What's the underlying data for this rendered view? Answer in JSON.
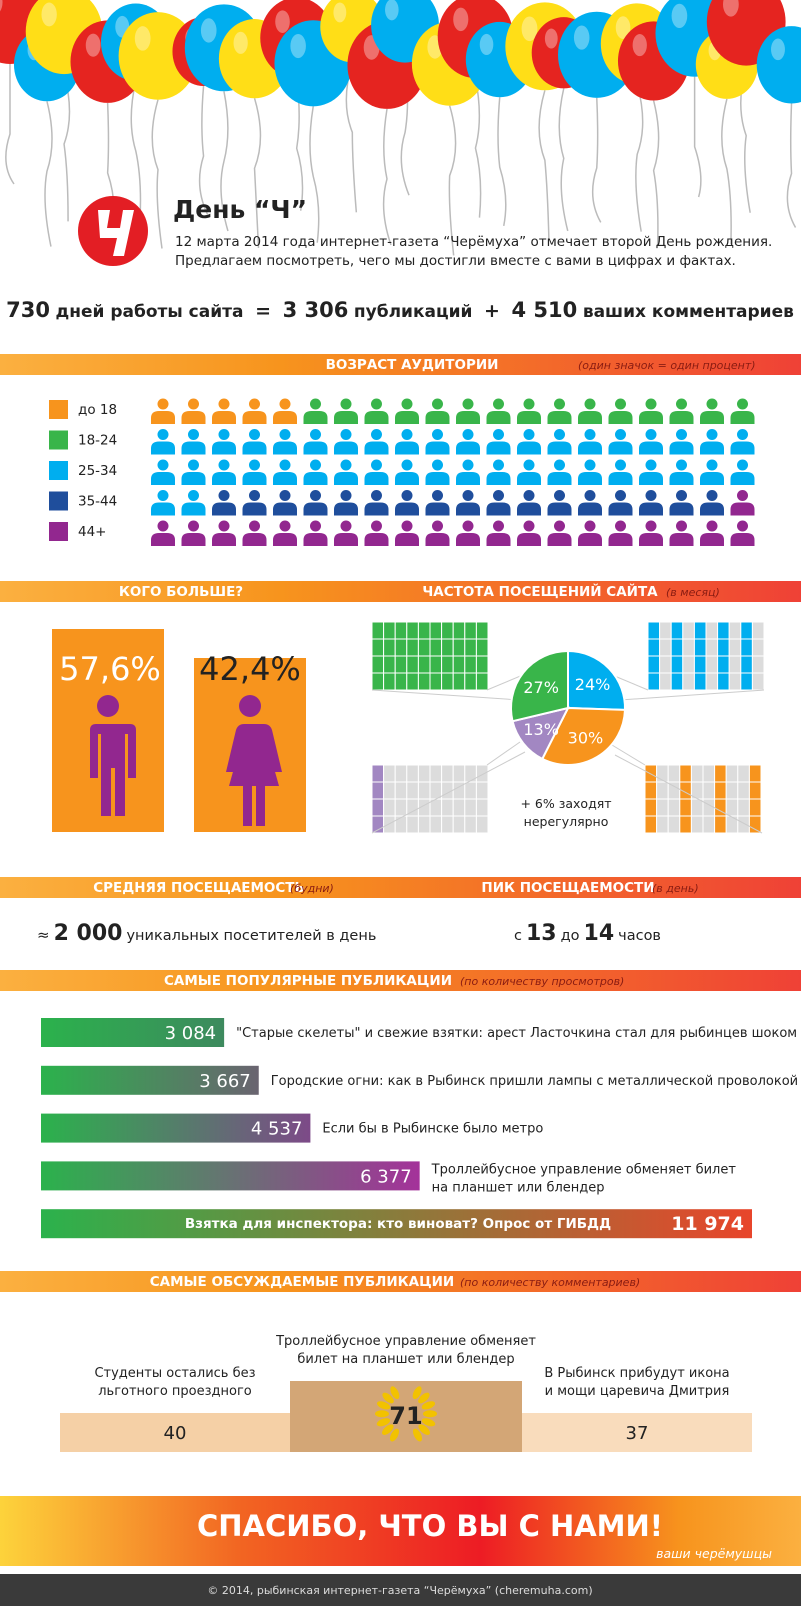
{
  "header": {
    "title": "День “Ч”",
    "lines": [
      "12 марта 2014 года интернет-газета “Черёмуха” отмечает второй День рождения.",
      "Предлагаем посмотреть, чего мы достигли вместе с вами в цифрах и фактах."
    ]
  },
  "summary": {
    "days": "730",
    "days_text": "дней работы сайта",
    "equals": "=",
    "publications": "3 306",
    "publications_text": "публикаций",
    "plus": "+",
    "comments": "4 510",
    "comments_text": "ваших комментариев"
  },
  "age": {
    "title": "ВОЗРАСТ АУДИТОРИИ",
    "note": "(один значок = один процент)",
    "groups": [
      {
        "name": "до 18",
        "color": "#f7941d",
        "value": 5
      },
      {
        "name": "18-24",
        "color": "#39b54a",
        "value": 15
      },
      {
        "name": "25-34",
        "color": "#00aeef",
        "value": 42
      },
      {
        "name": "35-44",
        "color": "#1f4e9c",
        "value": 17
      },
      {
        "name": "44+",
        "color": "#92278f",
        "value": 21
      }
    ]
  },
  "gender": {
    "title": "КОГО БОЛЬШЕ?",
    "male": "57,6%",
    "female": "42,4%"
  },
  "frequency": {
    "title": "ЧАСТОТА ПОСЕЩЕНИЙ САЙТА",
    "note": "(в месяц)",
    "type": "pie",
    "values": [
      24,
      30,
      13,
      27
    ],
    "value_labels": [
      "24%",
      "30%",
      "13%",
      "27%"
    ],
    "colors": [
      "#00aeef",
      "#f7941d",
      "#a287c2",
      "#39b54a"
    ],
    "footnote_lines": [
      "+ 6% заходят",
      "нерегулярно"
    ]
  },
  "attendance": {
    "title": "СРЕДНЯЯ ПОСЕЩАЕМОСТЬ",
    "note": "(будни)",
    "approx": "≈",
    "number": "2 000",
    "text": "уникальных посетителей в день"
  },
  "peak": {
    "title": "ПИК ПОСЕЩАЕМОСТИ",
    "note": "(в день)",
    "from_word": "с",
    "from": "13",
    "to_word": "до",
    "to": "14",
    "unit": "часов"
  },
  "popular": {
    "title": "САМЫЕ ПОПУЛЯРНЫЕ ПУБЛИКАЦИИ",
    "note": "(по количеству просмотров)",
    "values": [
      3084,
      3667,
      4537,
      6377,
      11974
    ],
    "value_labels": [
      "3 084",
      "3 667",
      "4 537",
      "6 377",
      "11 974"
    ],
    "colors": [
      "#3d8a5e",
      "#6a6470",
      "#7d4a88",
      "#a4329a",
      "#e8452b"
    ],
    "titles": [
      [
        "\"Старые скелеты\" и свежие взятки: арест Ласточкина стал для рыбинцев шоком"
      ],
      [
        "Городские огни: как в Рыбинск пришли лампы с металлической проволокой"
      ],
      [
        "Если бы в Рыбинске было метро"
      ],
      [
        "Троллейбусное управление обменяет билет",
        "на планшет или блендер"
      ],
      [
        "Взятка для инспектора: кто виноват? Опрос от ГИБДД"
      ]
    ]
  },
  "discussed": {
    "title": "САМЫЕ ОБСУЖДАЕМЫЕ ПУБЛИКАЦИИ",
    "note": "(по количеству комментариев)",
    "items": [
      {
        "title_lines": [
          "Студенты остались без",
          "льготного проездного"
        ],
        "count": 40
      },
      {
        "title_lines": [
          "Троллейбусное управление обменяет",
          "билет на планшет или блендер"
        ],
        "count": 71
      },
      {
        "title_lines": [
          "В Рыбинск прибудут икона",
          "и мощи царевича Дмитрия"
        ],
        "count": 37
      }
    ]
  },
  "footer": {
    "thanks": "СПАСИБО, ЧТО ВЫ С НАМИ!",
    "signature": "ваши черёмушцы",
    "copyright": "© 2014, рыбинская интернет-газета “Черёмуха” (cheremuha.com)"
  }
}
